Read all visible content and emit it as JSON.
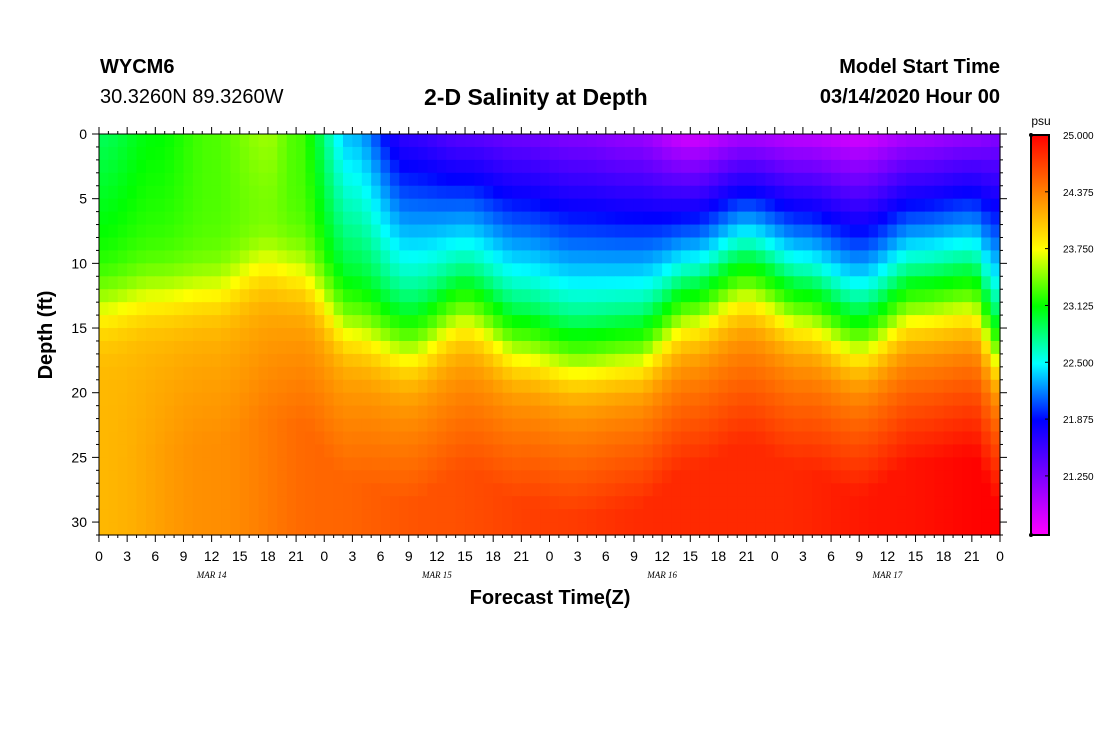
{
  "header": {
    "station_id": "WYCM6",
    "station_coords": "30.3260N 89.3260W",
    "title": "2-D Salinity at Depth",
    "model_start_label": "Model Start Time",
    "model_start_value": "03/14/2020 Hour 00"
  },
  "chart_data": {
    "type": "heatmap",
    "title": "2-D Salinity at Depth",
    "xlabel": "Forecast Time(Z)",
    "ylabel": "Depth (ft)",
    "x_range_hours": [
      0,
      96
    ],
    "y_range_ft": [
      0,
      31
    ],
    "x_tick_labels": [
      "0",
      "3",
      "6",
      "9",
      "12",
      "15",
      "18",
      "21",
      "0",
      "3",
      "6",
      "9",
      "12",
      "15",
      "18",
      "21",
      "0",
      "3",
      "6",
      "9",
      "12",
      "15",
      "18",
      "21",
      "0",
      "3",
      "6",
      "9",
      "12",
      "15",
      "18",
      "21",
      "0"
    ],
    "y_tick_values": [
      0,
      5,
      10,
      15,
      20,
      25,
      30
    ],
    "day_labels": [
      {
        "hour": 12,
        "label": "MAR 14"
      },
      {
        "hour": 36,
        "label": "MAR 15"
      },
      {
        "hour": 60,
        "label": "MAR 16"
      },
      {
        "hour": 84,
        "label": "MAR 17"
      }
    ],
    "colorbar": {
      "unit": "psu",
      "min": 20.6,
      "max": 25.0,
      "tick_values": [
        25.0,
        24.375,
        23.75,
        23.125,
        22.5,
        21.875,
        21.25
      ],
      "tick_labels": [
        "25.000",
        "24.375",
        "23.750",
        "23.125",
        "22.500",
        "21.875",
        "21.250"
      ],
      "colors": [
        "#ff00ff",
        "#8000ff",
        "#0000ff",
        "#00ffff",
        "#00ff00",
        "#ffff00",
        "#ff8000",
        "#ff0000"
      ]
    },
    "field_model": {
      "halocline_depth_keyframes": [
        [
          0,
          13.5
        ],
        [
          6,
          12.5
        ],
        [
          12,
          12
        ],
        [
          18,
          10
        ],
        [
          21,
          10.5
        ],
        [
          27,
          15
        ],
        [
          33,
          16.5
        ],
        [
          39,
          14
        ],
        [
          45,
          16.5
        ],
        [
          51,
          17.5
        ],
        [
          57,
          17
        ],
        [
          63,
          14
        ],
        [
          69,
          12
        ],
        [
          75,
          14
        ],
        [
          81,
          16
        ],
        [
          87,
          13.5
        ],
        [
          93,
          13
        ],
        [
          96,
          17
        ]
      ],
      "surface_salinity_keyframes": [
        [
          0,
          22.9
        ],
        [
          6,
          23.1
        ],
        [
          12,
          23.3
        ],
        [
          18,
          23.5
        ],
        [
          21,
          23.3
        ],
        [
          27,
          22.3
        ],
        [
          33,
          21.6
        ],
        [
          39,
          21.4
        ],
        [
          45,
          21.3
        ],
        [
          51,
          21.2
        ],
        [
          57,
          21.1
        ],
        [
          63,
          20.8
        ],
        [
          69,
          21.0
        ],
        [
          75,
          20.9
        ],
        [
          81,
          20.8
        ],
        [
          87,
          21.0
        ],
        [
          93,
          21.1
        ],
        [
          96,
          21.2
        ]
      ],
      "bottom_salinity_keyframes": [
        [
          0,
          24.1
        ],
        [
          12,
          24.3
        ],
        [
          24,
          24.5
        ],
        [
          36,
          24.6
        ],
        [
          48,
          24.7
        ],
        [
          60,
          24.8
        ],
        [
          72,
          24.8
        ],
        [
          84,
          24.9
        ],
        [
          96,
          25.0
        ]
      ]
    }
  }
}
